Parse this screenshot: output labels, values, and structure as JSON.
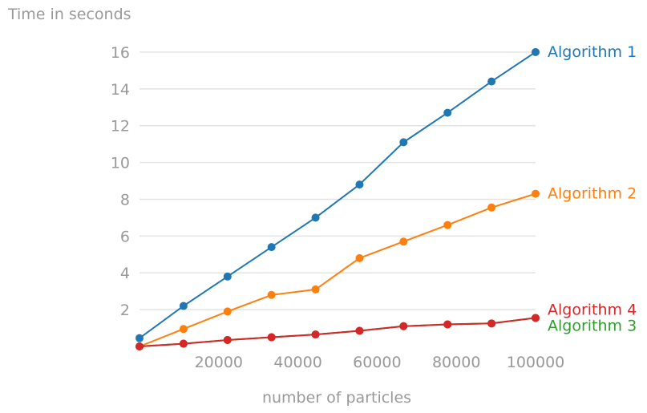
{
  "chart_data": {
    "type": "line",
    "title": "",
    "ylabel": "Time in seconds",
    "xlabel": "number of particles",
    "xlim": [
      0,
      100000
    ],
    "ylim": [
      0,
      17
    ],
    "x_ticks": [
      20000,
      40000,
      60000,
      80000,
      100000
    ],
    "y_ticks": [
      2,
      4,
      6,
      8,
      10,
      12,
      14,
      16
    ],
    "grid": "horizontal",
    "legend": "direct labels at line ends",
    "x": [
      0,
      11111,
      22222,
      33333,
      44444,
      55556,
      66667,
      77778,
      88889,
      100000
    ],
    "series": [
      {
        "name": "Algorithm 1",
        "color": "#1f77b4",
        "values": [
          0.45,
          2.2,
          3.8,
          5.4,
          7.0,
          8.8,
          11.1,
          12.7,
          14.4,
          16.0
        ]
      },
      {
        "name": "Algorithm 2",
        "color": "#ff7f0e",
        "values": [
          0.0,
          0.95,
          1.9,
          2.8,
          3.1,
          4.8,
          5.7,
          6.6,
          7.55,
          8.3
        ]
      },
      {
        "name": "Algorithm 3",
        "color": "#2ca02c",
        "values": [
          0.0,
          0.15,
          0.35,
          0.5,
          0.65,
          0.85,
          1.1,
          1.2,
          1.25,
          1.55
        ]
      },
      {
        "name": "Algorithm 4",
        "color": "#d62728",
        "values": [
          0.0,
          0.15,
          0.35,
          0.5,
          0.65,
          0.85,
          1.1,
          1.2,
          1.25,
          1.55
        ]
      }
    ]
  }
}
